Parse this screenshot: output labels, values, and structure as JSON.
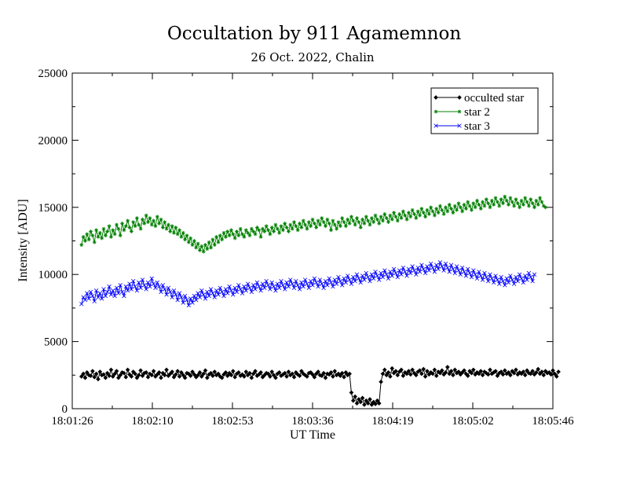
{
  "chart_data": {
    "type": "line",
    "title": "Occultation by 911 Agamemnon",
    "subtitle": "26 Oct. 2022, Chalin",
    "xlabel": "UT Time",
    "ylabel": "Intensity [ADU]",
    "x_ticks": [
      "18:01:26",
      "18:02:10",
      "18:02:53",
      "18:03:36",
      "18:04:19",
      "18:05:02",
      "18:05:46"
    ],
    "x_range_seconds": [
      0,
      260
    ],
    "ylim": [
      0,
      25000
    ],
    "y_ticks": [
      0,
      5000,
      10000,
      15000,
      20000,
      25000
    ],
    "legend_position": "top-right",
    "series": [
      {
        "name": "occulted star",
        "color": "#000000",
        "marker": "diamond",
        "x_start": 5,
        "x_step": 1,
        "values": [
          2400,
          2600,
          2300,
          2700,
          2500,
          2450,
          2800,
          2350,
          2600,
          2200,
          2750,
          2500,
          2550,
          2300,
          2650,
          2450,
          2900,
          2400,
          2600,
          2800,
          2300,
          2500,
          2700,
          2650,
          2350,
          2900,
          2550,
          2400,
          2750,
          2600,
          2300,
          2500,
          2850,
          2450,
          2650,
          2700,
          2350,
          2600,
          2500,
          2800,
          2400,
          2550,
          2700,
          2300,
          2650,
          2500,
          2900,
          2450,
          2600,
          2750,
          2350,
          2550,
          2800,
          2400,
          2700,
          2500,
          2300,
          2650,
          2600,
          2450,
          2750,
          2550,
          2350,
          2500,
          2700,
          2400,
          2600,
          2850,
          2300,
          2550,
          2650,
          2450,
          2750,
          2500,
          2600,
          2400,
          2300,
          2550,
          2700,
          2450,
          2650,
          2500,
          2800,
          2350,
          2600,
          2700,
          2450,
          2550,
          2400,
          2750,
          2500,
          2650,
          2300,
          2600,
          2800,
          2450,
          2550,
          2700,
          2350,
          2500,
          2650,
          2600,
          2400,
          2750,
          2500,
          2300,
          2600,
          2700,
          2450,
          2550,
          2650,
          2400,
          2750,
          2500,
          2600,
          2350,
          2700,
          2550,
          2450,
          2800,
          2600,
          2500,
          2400,
          2650,
          2700,
          2550,
          2350,
          2600,
          2750,
          2500,
          2450,
          2650,
          2300,
          2600,
          2550,
          2700,
          2400,
          2800,
          2500,
          2600,
          2450,
          2650,
          2350,
          2700,
          2500,
          2600,
          1200,
          600,
          900,
          400,
          700,
          500,
          800,
          300,
          600,
          400,
          700,
          300,
          500,
          350,
          600,
          400,
          2000,
          2600,
          2900,
          2500,
          2700,
          2400,
          3000,
          2650,
          2800,
          2500,
          2750,
          2900,
          2450,
          2700,
          2600,
          2800,
          2550,
          2900,
          2650,
          2500,
          2750,
          2850,
          2600,
          2950,
          2400,
          2800,
          2550,
          2700,
          2600,
          2900,
          2450,
          2750,
          2650,
          2850,
          2550,
          2700,
          3100,
          2600,
          2800,
          2500,
          2900,
          2650,
          2750,
          2550,
          2700,
          2850,
          2600,
          2450,
          2800,
          2650,
          2900,
          2550,
          2700,
          2600,
          2800,
          2500,
          2750,
          2650,
          2550,
          2900,
          2600,
          2700,
          2800,
          2450,
          2650,
          2750,
          2550,
          2850,
          2600,
          2700,
          2500,
          2800,
          2650,
          2900,
          2550,
          2700,
          2600,
          2750,
          2500,
          2850,
          2650,
          2600,
          2800,
          2550,
          2700,
          2950,
          2600,
          2750,
          2500,
          2800,
          2650,
          2700,
          2550,
          2850,
          2600,
          2400,
          2750
        ]
      },
      {
        "name": "star 2",
        "color": "#008000",
        "marker": "star",
        "x_start": 5,
        "x_step": 1,
        "values": [
          12200,
          12800,
          12500,
          13000,
          12600,
          13200,
          12900,
          12400,
          13300,
          12800,
          13100,
          12700,
          13400,
          12900,
          13200,
          13600,
          12800,
          13300,
          13000,
          13700,
          13400,
          12900,
          13800,
          13300,
          13600,
          14000,
          13500,
          13200,
          13900,
          13600,
          14200,
          13700,
          13400,
          14100,
          13800,
          14400,
          13900,
          14200,
          13700,
          14000,
          13600,
          14300,
          13800,
          14100,
          13500,
          13900,
          13400,
          13700,
          13200,
          13600,
          13100,
          13500,
          13000,
          13300,
          12800,
          13100,
          12600,
          12900,
          12400,
          12700,
          12200,
          12500,
          12000,
          12300,
          11800,
          12100,
          11700,
          12200,
          11900,
          12400,
          12000,
          12600,
          12200,
          12800,
          12400,
          12900,
          12600,
          13100,
          12800,
          13200,
          12900,
          13300,
          13000,
          12700,
          13200,
          12900,
          13400,
          13000,
          12800,
          13300,
          13100,
          12900,
          13400,
          13200,
          13000,
          13500,
          13300,
          12800,
          13400,
          13200,
          13600,
          13300,
          13000,
          13500,
          13200,
          13700,
          13400,
          13100,
          13600,
          13300,
          13800,
          13500,
          13200,
          13700,
          13400,
          13900,
          13600,
          13300,
          13800,
          13500,
          14000,
          13700,
          13400,
          13900,
          13600,
          14100,
          13800,
          13500,
          14000,
          13700,
          14200,
          13900,
          13600,
          14100,
          13800,
          13300,
          14000,
          13700,
          13400,
          13900,
          13600,
          14200,
          13900,
          13600,
          14100,
          13800,
          14300,
          14000,
          13700,
          14200,
          13900,
          13500,
          14100,
          13800,
          14300,
          14000,
          13700,
          14200,
          13900,
          14400,
          14100,
          13800,
          14300,
          14000,
          14500,
          14200,
          13900,
          14400,
          14100,
          14600,
          14300,
          14000,
          14500,
          14200,
          14700,
          14400,
          14100,
          14600,
          14300,
          14800,
          14500,
          14200,
          14700,
          14400,
          14900,
          14600,
          14300,
          14800,
          14500,
          15000,
          14700,
          14400,
          14900,
          14600,
          15100,
          14800,
          14500,
          15000,
          14700,
          15200,
          14900,
          14600,
          15100,
          14800,
          15300,
          15000,
          14700,
          15200,
          14900,
          15400,
          15100,
          14800,
          15300,
          15000,
          15500,
          15200,
          14900,
          15400,
          15100,
          15600,
          15300,
          15000,
          15500,
          15200,
          15700,
          15400,
          15100,
          15600,
          15300,
          15800,
          15500,
          15200,
          15700,
          15400,
          15100,
          15600,
          15300,
          15000,
          15500,
          15200,
          15700,
          15400,
          15100,
          15600,
          15300,
          15000,
          15500,
          15200,
          15700,
          15400,
          15100,
          15000
        ]
      },
      {
        "name": "star 3",
        "color": "#0000ff",
        "marker": "cross",
        "x_start": 5,
        "x_step": 1,
        "values": [
          7800,
          8300,
          8100,
          8600,
          8200,
          8700,
          8400,
          8000,
          8800,
          8300,
          8600,
          8200,
          8900,
          8400,
          8700,
          9100,
          8500,
          8800,
          8400,
          9000,
          8600,
          9200,
          8700,
          8400,
          9100,
          8800,
          9300,
          8900,
          9500,
          9100,
          8800,
          9400,
          9000,
          9600,
          9200,
          8900,
          9400,
          9100,
          9700,
          9300,
          9000,
          9400,
          9100,
          8700,
          9200,
          8900,
          8500,
          9000,
          8700,
          8300,
          8800,
          8500,
          8100,
          8600,
          8300,
          7900,
          8400,
          8100,
          7700,
          8200,
          7900,
          8400,
          8100,
          8600,
          8300,
          8800,
          8500,
          8200,
          8700,
          8400,
          8900,
          8600,
          8300,
          8800,
          8500,
          9000,
          8700,
          8400,
          8900,
          8600,
          9100,
          8800,
          8500,
          9000,
          8700,
          9200,
          8900,
          8600,
          9100,
          8800,
          9300,
          9000,
          8700,
          9200,
          8900,
          9400,
          9100,
          8800,
          9300,
          9000,
          9500,
          9200,
          8900,
          9400,
          9100,
          8800,
          9300,
          9000,
          9500,
          9200,
          8900,
          9400,
          9100,
          9600,
          9300,
          9000,
          9500,
          9200,
          8900,
          9400,
          9100,
          9600,
          9300,
          9000,
          9500,
          9200,
          9700,
          9400,
          9100,
          9600,
          9300,
          9000,
          9500,
          9200,
          9700,
          9400,
          9100,
          9600,
          9300,
          9800,
          9500,
          9200,
          9700,
          9400,
          9900,
          9600,
          9300,
          9800,
          9500,
          10000,
          9700,
          9400,
          9900,
          9600,
          10100,
          9800,
          9500,
          10000,
          9700,
          10200,
          9900,
          9600,
          10100,
          9800,
          10300,
          10000,
          9700,
          10200,
          9900,
          10400,
          10100,
          9800,
          10300,
          10000,
          10500,
          10200,
          9900,
          10400,
          10100,
          10600,
          10300,
          10000,
          10500,
          10200,
          10700,
          10400,
          10100,
          10600,
          10300,
          10800,
          10500,
          10200,
          10700,
          10400,
          10900,
          10600,
          10300,
          10800,
          10500,
          10200,
          10700,
          10400,
          10100,
          10600,
          10300,
          10000,
          10500,
          10200,
          9900,
          10400,
          10100,
          9800,
          10300,
          10000,
          9700,
          10200,
          9900,
          9600,
          10100,
          9800,
          9500,
          10000,
          9700,
          9400,
          9900,
          9600,
          9300,
          9800,
          9500,
          9200,
          9700,
          9400,
          9900,
          9600,
          9300,
          9800,
          9500,
          10000,
          9700,
          9400,
          9900,
          9600,
          10100,
          9800,
          9500,
          10000
        ]
      }
    ]
  }
}
